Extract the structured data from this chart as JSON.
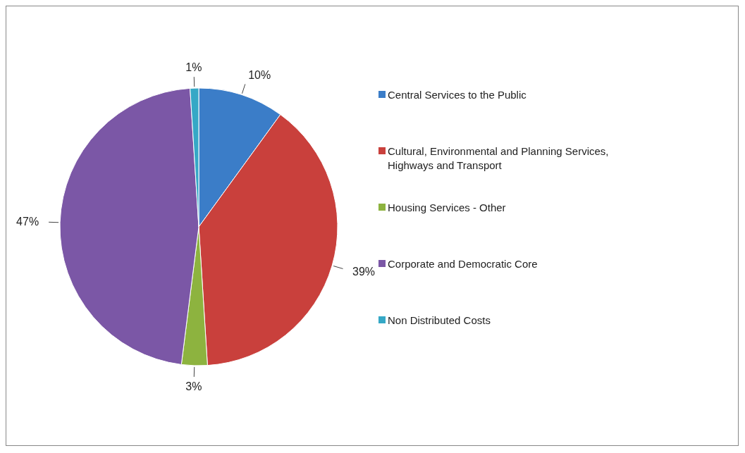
{
  "chart_data": {
    "type": "pie",
    "categories": [
      "Central Services to the Public",
      "Cultural, Environmental and Planning Services, Highways and Transport",
      "Housing Services - Other",
      "Corporate and Democratic Core",
      "Non Distributed Costs"
    ],
    "values": [
      10,
      39,
      3,
      47,
      1
    ],
    "colors": [
      "#3b7dc8",
      "#c9403c",
      "#8db33f",
      "#7b57a6",
      "#35a8c6"
    ],
    "value_labels": [
      "10%",
      "39%",
      "3%",
      "47%",
      "1%"
    ],
    "legend": "right"
  }
}
